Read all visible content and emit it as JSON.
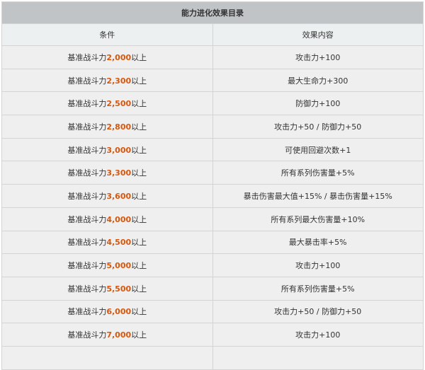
{
  "table": {
    "title": "能力进化效果目录",
    "headers": [
      "条件",
      "效果内容"
    ],
    "condition_prefix": "基准战斗力",
    "condition_suffix": "以上",
    "highlight_color": "#d9560b",
    "rows": [
      {
        "value": "2,000",
        "effect": "攻击力+100"
      },
      {
        "value": "2,300",
        "effect": "最大生命力+300"
      },
      {
        "value": "2,500",
        "effect": "防御力+100"
      },
      {
        "value": "2,800",
        "effect": "攻击力+50 / 防御力+50"
      },
      {
        "value": "3,000",
        "effect": "可使用回避次数+1"
      },
      {
        "value": "3,300",
        "effect": "所有系列伤害量+5%"
      },
      {
        "value": "3,600",
        "effect": "暴击伤害最大值+15% / 暴击伤害量+15%"
      },
      {
        "value": "4,000",
        "effect": "所有系列最大伤害量+10%"
      },
      {
        "value": "4,500",
        "effect": "最大暴击率+5%"
      },
      {
        "value": "5,000",
        "effect": "攻击力+100"
      },
      {
        "value": "5,500",
        "effect": "所有系列伤害量+5%"
      },
      {
        "value": "6,000",
        "effect": "攻击力+50 / 防御力+50"
      },
      {
        "value": "7,000",
        "effect": "攻击力+100"
      },
      {
        "value": "",
        "effect": ""
      }
    ]
  }
}
